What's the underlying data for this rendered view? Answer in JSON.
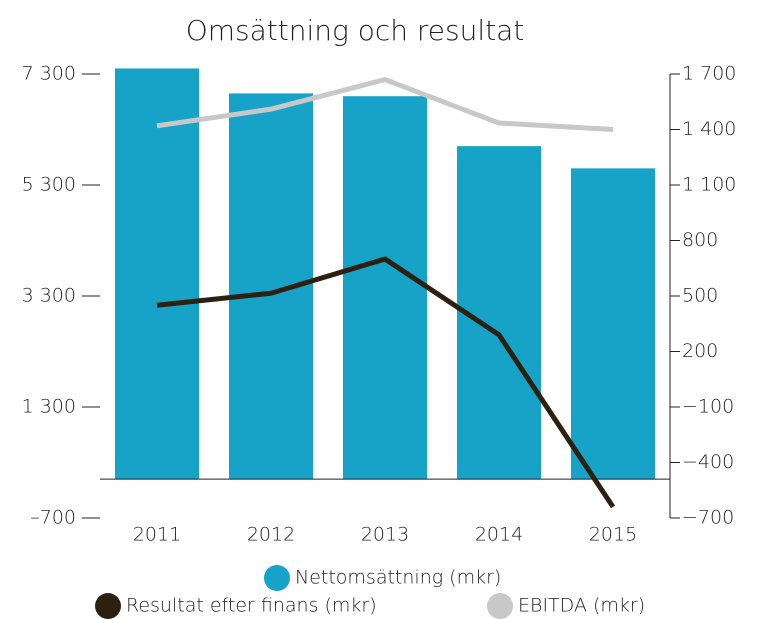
{
  "chart_data": {
    "type": "bar",
    "title": "Omsättning och resultat",
    "categories": [
      "2011",
      "2012",
      "2013",
      "2014",
      "2015"
    ],
    "series": [
      {
        "name": "Nettomsättning (mkr)",
        "type": "bar",
        "color": "#17a2c8",
        "axis": "y",
        "values": [
          7400,
          6950,
          6900,
          6000,
          5600
        ]
      },
      {
        "name": "Resultat efter finans (mkr)",
        "type": "line",
        "color": "#2e2010",
        "axis": "y2",
        "values": [
          450,
          515,
          700,
          290,
          -640
        ]
      },
      {
        "name": "EBITDA (mkr)",
        "type": "line",
        "color": "#c8c8c8",
        "axis": "y2",
        "values": [
          1420,
          1510,
          1670,
          1435,
          1400
        ]
      }
    ],
    "ylim": [
      -700,
      7300
    ],
    "yticks": [
      {
        "value": -700,
        "label": "–700"
      },
      {
        "value": 1300,
        "label": "1 300"
      },
      {
        "value": 3300,
        "label": "3 300"
      },
      {
        "value": 5300,
        "label": "5 300"
      },
      {
        "value": 7300,
        "label": "7 300"
      }
    ],
    "y2lim": [
      -700,
      1700
    ],
    "y2ticks": [
      {
        "value": -700,
        "label": "−700"
      },
      {
        "value": -400,
        "label": "−400"
      },
      {
        "value": -100,
        "label": "−100"
      },
      200,
      500,
      800,
      {
        "value": 1100,
        "label": "1 100"
      },
      {
        "value": 1400,
        "label": "1 400"
      },
      {
        "value": 1700,
        "label": "1 700"
      }
    ]
  }
}
